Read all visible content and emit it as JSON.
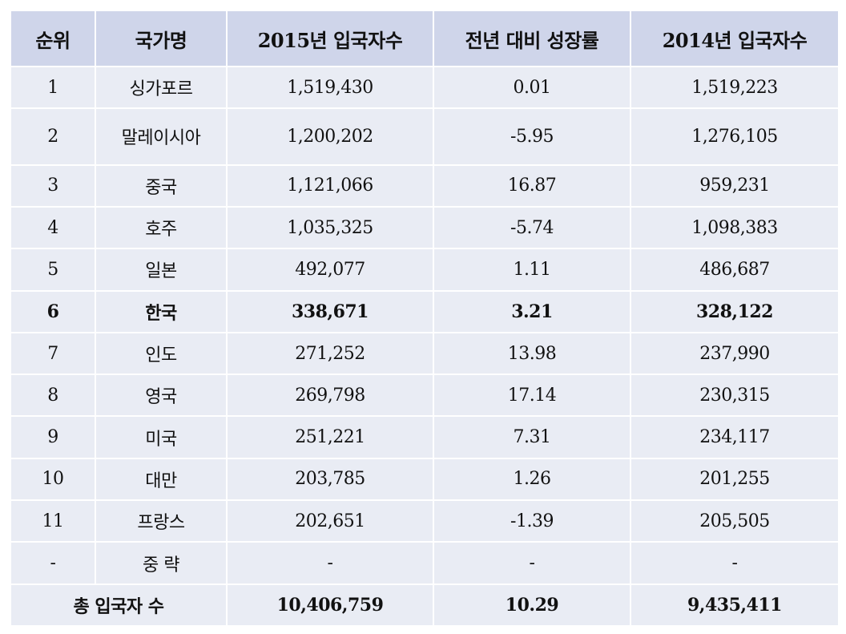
{
  "headers": [
    "순위",
    "국가명",
    "2015년 입국자수",
    "전년 대비 성장률",
    "2014년 입국자수"
  ],
  "rows": [
    [
      "1",
      "싱가포르",
      "1,519,430",
      "0.01",
      "1,519,223"
    ],
    [
      "2",
      "말레이시아",
      "1,200,202",
      "-5.95",
      "1,276,105"
    ],
    [
      "3",
      "중국",
      "1,121,066",
      "16.87",
      "959,231"
    ],
    [
      "4",
      "호주",
      "1,035,325",
      "-5.74",
      "1,098,383"
    ],
    [
      "5",
      "일본",
      "492,077",
      "1.11",
      "486,687"
    ],
    [
      "6",
      "한국",
      "338,671",
      "3.21",
      "328,122"
    ],
    [
      "7",
      "인도",
      "271,252",
      "13.98",
      "237,990"
    ],
    [
      "8",
      "영국",
      "269,798",
      "17.14",
      "230,315"
    ],
    [
      "9",
      "미국",
      "251,221",
      "7.31",
      "234,117"
    ],
    [
      "10",
      "대만",
      "203,785",
      "1.26",
      "201,255"
    ],
    [
      "11",
      "프랑스",
      "202,651",
      "-1.39",
      "205,505"
    ],
    [
      "-",
      "중 략",
      "-",
      "-",
      "-"
    ]
  ],
  "total": {
    "label": "총 입국자 수",
    "values": [
      "10,406,759",
      "10.29",
      "9,435,411"
    ]
  }
}
